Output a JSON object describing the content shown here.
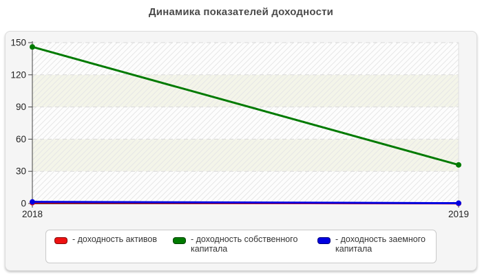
{
  "page": {
    "title": "Динамика показателей доходности"
  },
  "chart_data": {
    "type": "line",
    "title": "Динамика показателей доходности",
    "categories": [
      "2018",
      "2019"
    ],
    "xtick_labels": [
      "2018",
      "2019"
    ],
    "ytick_labels": [
      "0",
      "30",
      "60",
      "90",
      "120",
      "150"
    ],
    "ylim": [
      0,
      150
    ],
    "ytick_step": 30,
    "grid": "horizontal-dashed",
    "plot_background": "alternating horizontal bands with diagonal hatch",
    "legend_position": "bottom",
    "series": [
      {
        "name": "доходность активов",
        "color": "#ee1111",
        "values": [
          0.8,
          0.1
        ]
      },
      {
        "name": "доходность собственного капитала",
        "color": "#007a00",
        "values": [
          146,
          36
        ]
      },
      {
        "name": "доходность заемного капитала",
        "color": "#0000e0",
        "values": [
          1.5,
          0.3
        ]
      }
    ]
  },
  "legend": {
    "items": [
      {
        "label": "- доходность активов"
      },
      {
        "label": "- доходность собственного\nкапитала"
      },
      {
        "label": "- доходность заемного\nкапитала"
      }
    ]
  },
  "style_colors": {
    "band_light": "#fdfdfd",
    "band_tint": "#f4f5e9",
    "hatch": "#e6e6e6",
    "gridline": "#d9d9d9",
    "axis": "#444444",
    "baseline": "#222222",
    "tick_text": "#222222",
    "panel_bg": "#f5f5f5"
  }
}
